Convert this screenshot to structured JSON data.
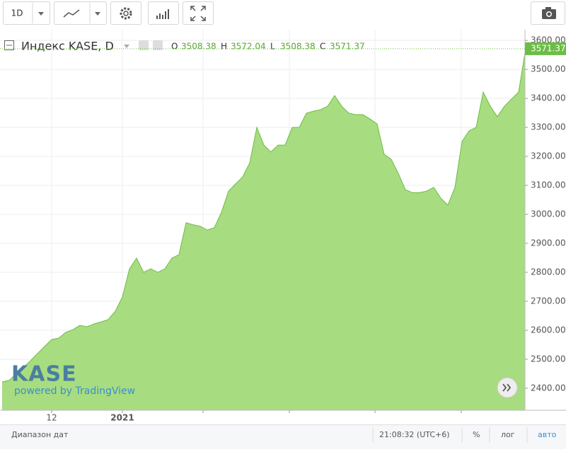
{
  "toolbar": {
    "interval": "1D"
  },
  "watermark": {
    "logo": "KASE",
    "powered": "powered by TradingView"
  },
  "footer": {
    "range": "Диапазон дат",
    "time": "21:08:32 (UTC+6)",
    "percent": "%",
    "log": "лог",
    "auto": "авто"
  },
  "chart_data": {
    "type": "area",
    "title": "Индекс KASE, D",
    "ohlc": [
      {
        "label": "O",
        "value": 3508.38
      },
      {
        "label": "H",
        "value": 3572.04
      },
      {
        "label": "L",
        "value": 3508.38
      },
      {
        "label": "C",
        "value": 3571.37
      }
    ],
    "categories": [
      null,
      null,
      null,
      null,
      null,
      null,
      null,
      "12",
      null,
      null,
      null,
      null,
      null,
      null,
      null,
      null,
      null,
      "2021",
      null,
      null,
      null,
      null,
      null,
      null,
      null,
      null,
      null,
      null,
      null,
      null,
      null,
      null,
      null,
      null,
      null,
      null,
      null,
      null,
      null,
      null,
      null,
      null,
      null,
      null,
      null,
      null,
      null,
      null,
      null,
      null,
      null,
      null,
      null,
      null,
      null,
      null,
      null,
      null,
      null,
      null,
      null,
      null,
      null,
      null,
      null,
      null,
      null,
      null,
      null,
      null,
      null,
      null,
      null,
      null,
      null
    ],
    "values": [
      2422,
      2427,
      2451,
      2471,
      2495,
      2520,
      2544,
      2568,
      2573,
      2593,
      2602,
      2617,
      2612,
      2622,
      2629,
      2637,
      2666,
      2715,
      2812,
      2849,
      2800,
      2812,
      2800,
      2812,
      2849,
      2861,
      2971,
      2964,
      2959,
      2946,
      2954,
      3007,
      3080,
      3105,
      3129,
      3178,
      3300,
      3239,
      3215,
      3239,
      3239,
      3300,
      3300,
      3349,
      3356,
      3361,
      3373,
      3410,
      3373,
      3349,
      3344,
      3344,
      3329,
      3312,
      3207,
      3190,
      3141,
      3085,
      3075,
      3075,
      3080,
      3093,
      3056,
      3032,
      3093,
      3251,
      3288,
      3300,
      3422,
      3373,
      3337,
      3373,
      3398,
      3422,
      3571.37
    ],
    "color": "#6cbd45",
    "fill": "#a8dc80",
    "ylim": [
      2324,
      3637
    ],
    "yticks": [
      {
        "value": 2400,
        "label": "2400.00"
      },
      {
        "value": 2500,
        "label": "2500.00"
      },
      {
        "value": 2600,
        "label": "2600.00"
      },
      {
        "value": 2700,
        "label": "2700.00"
      },
      {
        "value": 2800,
        "label": "2800.00"
      },
      {
        "value": 2900,
        "label": "2900.00"
      },
      {
        "value": 3000,
        "label": "3000.00"
      },
      {
        "value": 3100,
        "label": "3100.00"
      },
      {
        "value": 3200,
        "label": "3200.00"
      },
      {
        "value": 3300,
        "label": "3300.00"
      },
      {
        "value": 3400,
        "label": "3400.00"
      },
      {
        "value": 3500,
        "label": "3500.00"
      },
      {
        "value": 3600,
        "label": "3600.00"
      }
    ],
    "grid": true
  }
}
